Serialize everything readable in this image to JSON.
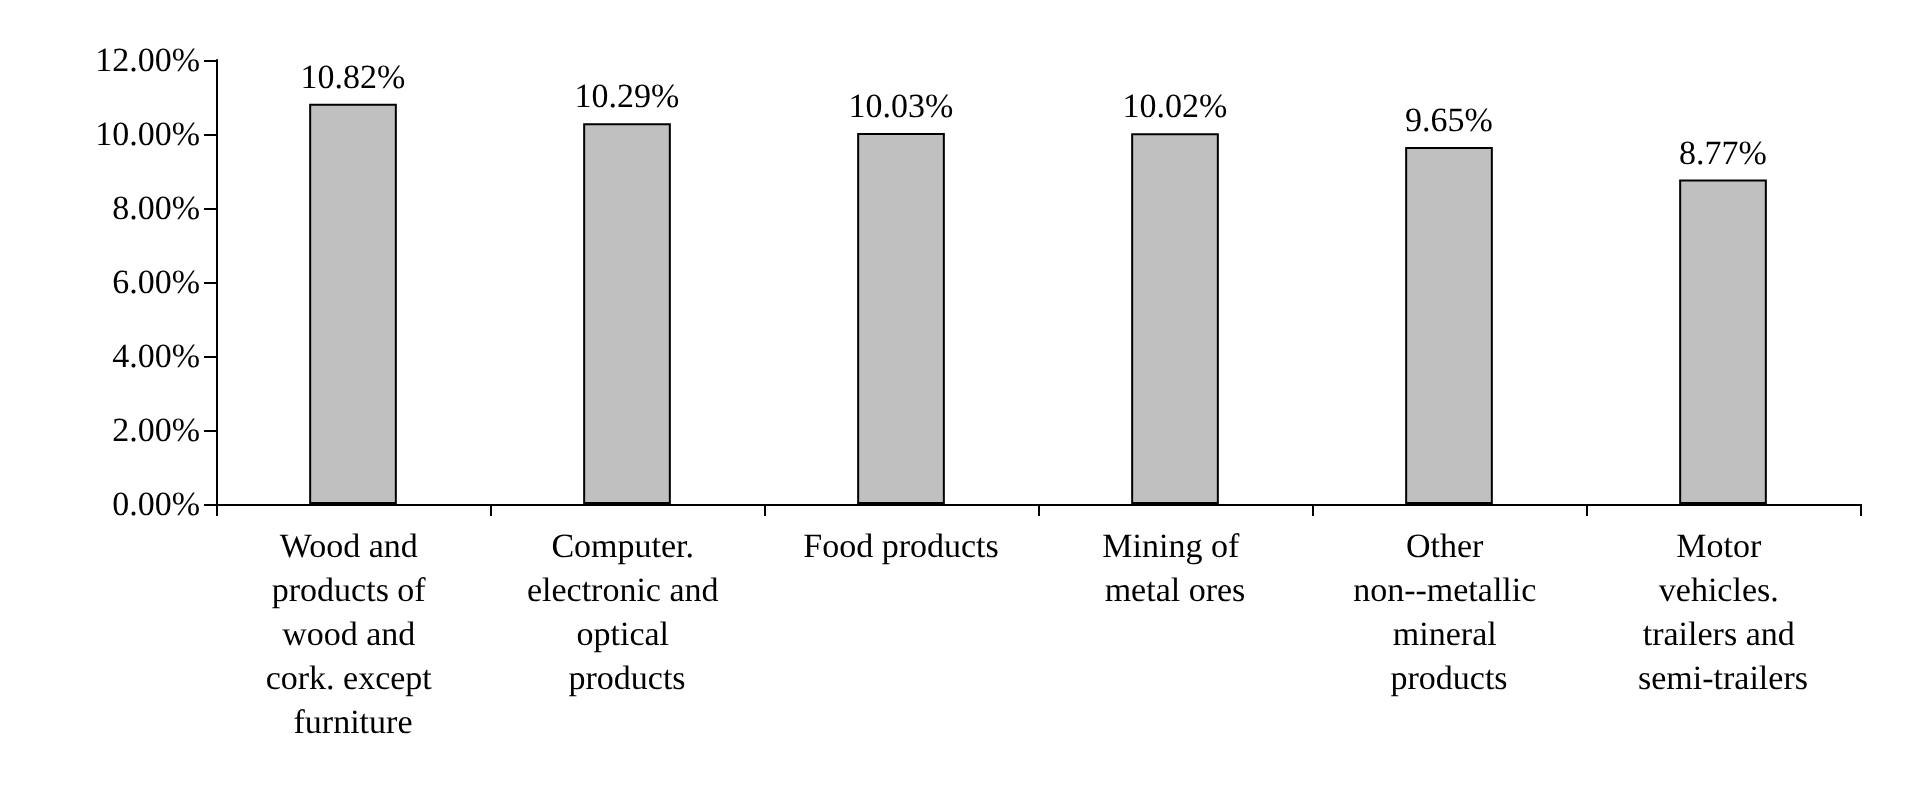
{
  "chart_data": {
    "type": "bar",
    "categories": [
      "Wood and products of wood and cork. except furniture",
      "Computer. electronic and optical products",
      "Food products",
      "Mining of metal ores",
      "Other non--metallic mineral products",
      "Motor vehicles. trailers and semi-trailers"
    ],
    "values": [
      10.82,
      10.29,
      10.03,
      10.02,
      9.65,
      8.77
    ],
    "value_labels": [
      "10.82%",
      "10.29%",
      "10.03%",
      "10.02%",
      "9.65%",
      "8.77%"
    ],
    "color": "#c0c0c0",
    "ylim": [
      0,
      12
    ],
    "yticks": [
      {
        "value": 0,
        "label": "0.00%"
      },
      {
        "value": 2,
        "label": "2.00%"
      },
      {
        "value": 4,
        "label": "4.00%"
      },
      {
        "value": 6,
        "label": "6.00%"
      },
      {
        "value": 8,
        "label": "8.00%"
      },
      {
        "value": 10,
        "label": "10.00%"
      },
      {
        "value": 12,
        "label": "12.00%"
      }
    ],
    "grid": false
  }
}
